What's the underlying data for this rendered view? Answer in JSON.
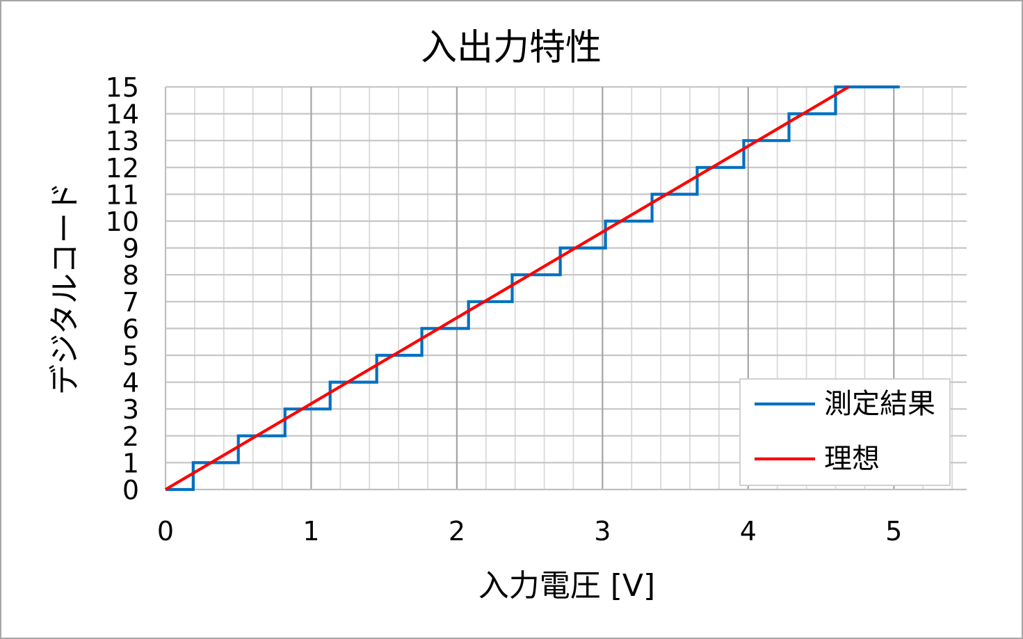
{
  "chart_data": {
    "type": "line",
    "title": "入出力特性",
    "xlabel": "入力電圧 [V]",
    "ylabel": "デジタルコード",
    "xlim": [
      0,
      5.5
    ],
    "ylim": [
      0,
      15
    ],
    "x_major_unit": 1,
    "x_minor_unit": 0.2,
    "y_major_unit": 1,
    "x_ticks": [
      "0",
      "1",
      "2",
      "3",
      "4",
      "5"
    ],
    "y_ticks": [
      "0",
      "1",
      "2",
      "3",
      "4",
      "5",
      "6",
      "7",
      "8",
      "9",
      "10",
      "11",
      "12",
      "13",
      "14",
      "15"
    ],
    "grid": true,
    "legend": "bottom-right",
    "series": [
      {
        "name": "測定結果",
        "color": "#0070C0",
        "x": [
          0,
          0.19,
          0.19,
          0.5,
          0.5,
          0.82,
          0.82,
          1.13,
          1.13,
          1.45,
          1.45,
          1.76,
          1.76,
          2.08,
          2.08,
          2.38,
          2.38,
          2.71,
          2.71,
          3.02,
          3.02,
          3.34,
          3.34,
          3.65,
          3.65,
          3.97,
          3.97,
          4.28,
          4.28,
          4.6,
          4.6,
          5.04
        ],
        "y": [
          0,
          0,
          1,
          1,
          2,
          2,
          3,
          3,
          4,
          4,
          5,
          5,
          6,
          6,
          7,
          7,
          8,
          8,
          9,
          9,
          10,
          10,
          11,
          11,
          12,
          12,
          13,
          13,
          14,
          14,
          15,
          15
        ]
      },
      {
        "name": "理想",
        "color": "#FF0000",
        "x": [
          0,
          4.69
        ],
        "y": [
          0,
          15
        ]
      }
    ]
  }
}
